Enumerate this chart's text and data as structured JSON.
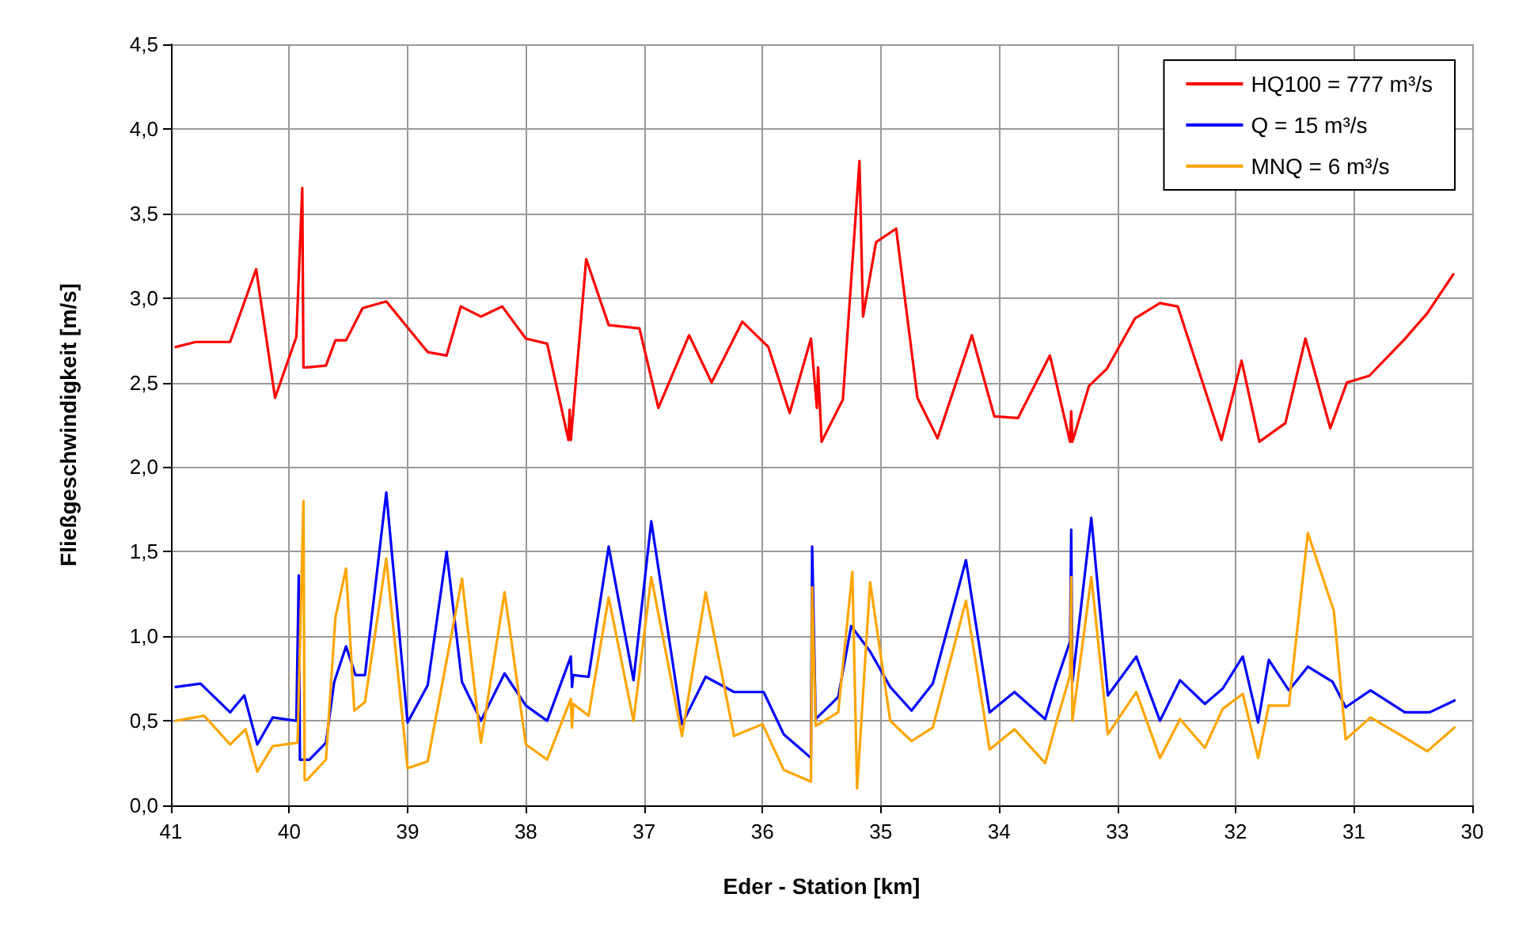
{
  "chart_data": {
    "type": "line",
    "xlabel": "Eder - Station [km]",
    "ylabel": "Fließgeschwindigkeit [m/s]",
    "xlim": [
      41,
      30
    ],
    "xticks": [
      41,
      40,
      39,
      38,
      37,
      36,
      35,
      34,
      33,
      32,
      31,
      30
    ],
    "ylim": [
      0,
      4.5
    ],
    "yticks": [
      {
        "value": 0,
        "label": "0,0"
      },
      {
        "value": 0.5,
        "label": "0,5"
      },
      {
        "value": 1,
        "label": "1,0"
      },
      {
        "value": 1.5,
        "label": "1,5"
      },
      {
        "value": 2,
        "label": "2,0"
      },
      {
        "value": 2.5,
        "label": "2,5"
      },
      {
        "value": 3,
        "label": "3,0"
      },
      {
        "value": 3.5,
        "label": "3,5"
      },
      {
        "value": 4,
        "label": "4,0"
      },
      {
        "value": 4.5,
        "label": "4,5"
      }
    ],
    "grid": true,
    "legend": "top right",
    "marker": "none",
    "line_style": "solid",
    "series": [
      {
        "name": "HQ100 = 777 m³/s",
        "color": "#ff0000",
        "x": [
          40.96,
          40.79,
          40.5,
          40.28,
          40.12,
          39.94,
          39.89,
          39.88,
          39.85,
          39.69,
          39.61,
          39.52,
          39.38,
          39.18,
          38.83,
          38.67,
          38.55,
          38.38,
          38.2,
          38.0,
          37.82,
          37.64,
          37.63,
          37.62,
          37.49,
          37.3,
          37.04,
          36.88,
          36.62,
          36.43,
          36.17,
          35.95,
          35.77,
          35.59,
          35.54,
          35.53,
          35.5,
          35.32,
          35.18,
          35.15,
          35.04,
          34.87,
          34.69,
          34.52,
          34.23,
          34.04,
          33.84,
          33.57,
          33.4,
          33.39,
          33.38,
          33.24,
          33.09,
          32.85,
          32.64,
          32.49,
          32.12,
          31.95,
          31.8,
          31.58,
          31.41,
          31.2,
          31.06,
          30.87,
          30.58,
          30.38,
          30.16
        ],
        "values": [
          2.71,
          2.74,
          2.74,
          3.17,
          2.41,
          2.77,
          3.65,
          2.59,
          2.59,
          2.6,
          2.75,
          2.75,
          2.94,
          2.98,
          2.68,
          2.66,
          2.95,
          2.89,
          2.95,
          2.76,
          2.73,
          2.16,
          2.34,
          2.16,
          3.23,
          2.84,
          2.82,
          2.35,
          2.78,
          2.5,
          2.86,
          2.71,
          2.32,
          2.76,
          2.35,
          2.59,
          2.15,
          2.4,
          3.81,
          2.89,
          3.33,
          3.41,
          2.41,
          2.17,
          2.78,
          2.3,
          2.29,
          2.66,
          2.15,
          2.33,
          2.15,
          2.48,
          2.58,
          2.88,
          2.97,
          2.95,
          2.16,
          2.63,
          2.15,
          2.26,
          2.76,
          2.23,
          2.5,
          2.54,
          2.75,
          2.91,
          3.14
        ]
      },
      {
        "name": "Q = 15 m³/s",
        "color": "#0000ff",
        "x": [
          40.96,
          40.75,
          40.5,
          40.38,
          40.27,
          40.14,
          39.94,
          39.92,
          39.91,
          39.83,
          39.69,
          39.62,
          39.52,
          39.44,
          39.36,
          39.18,
          39.0,
          38.83,
          38.67,
          38.54,
          38.38,
          38.18,
          38.0,
          37.82,
          37.62,
          37.61,
          37.6,
          37.47,
          37.3,
          37.09,
          36.94,
          36.68,
          36.48,
          36.24,
          35.99,
          35.82,
          35.59,
          35.58,
          35.55,
          35.36,
          35.25,
          35.09,
          34.92,
          34.74,
          34.56,
          34.28,
          34.08,
          33.87,
          33.61,
          33.52,
          33.4,
          33.39,
          33.38,
          33.22,
          33.08,
          32.84,
          32.64,
          32.47,
          32.26,
          32.11,
          31.94,
          31.81,
          31.72,
          31.55,
          31.39,
          31.18,
          31.07,
          30.86,
          30.57,
          30.36,
          30.15
        ],
        "values": [
          0.7,
          0.72,
          0.55,
          0.65,
          0.36,
          0.52,
          0.5,
          1.36,
          0.27,
          0.27,
          0.37,
          0.73,
          0.94,
          0.77,
          0.77,
          1.85,
          0.49,
          0.71,
          1.5,
          0.73,
          0.5,
          0.78,
          0.59,
          0.5,
          0.88,
          0.7,
          0.77,
          0.76,
          1.53,
          0.74,
          1.68,
          0.48,
          0.76,
          0.67,
          0.67,
          0.42,
          0.28,
          1.53,
          0.51,
          0.64,
          1.06,
          0.91,
          0.7,
          0.56,
          0.72,
          1.45,
          0.55,
          0.67,
          0.51,
          0.72,
          0.97,
          1.63,
          0.73,
          1.7,
          0.65,
          0.88,
          0.5,
          0.74,
          0.6,
          0.69,
          0.88,
          0.49,
          0.86,
          0.68,
          0.82,
          0.73,
          0.58,
          0.68,
          0.55,
          0.55,
          0.62
        ]
      },
      {
        "name": "MNQ = 6 m³/s",
        "color": "#ffa500",
        "x": [
          40.96,
          40.72,
          40.5,
          40.37,
          40.27,
          40.14,
          39.93,
          39.88,
          39.87,
          39.85,
          39.69,
          39.61,
          39.52,
          39.45,
          39.36,
          39.18,
          39.0,
          38.83,
          38.54,
          38.38,
          38.18,
          38.0,
          37.82,
          37.62,
          37.61,
          37.6,
          37.47,
          37.3,
          37.09,
          36.94,
          36.68,
          36.48,
          36.24,
          36.0,
          35.82,
          35.59,
          35.58,
          35.55,
          35.36,
          35.24,
          35.2,
          35.09,
          34.92,
          34.74,
          34.56,
          34.28,
          34.08,
          33.87,
          33.61,
          33.52,
          33.4,
          33.39,
          33.38,
          33.22,
          33.08,
          32.84,
          32.64,
          32.47,
          32.26,
          32.11,
          31.94,
          31.81,
          31.72,
          31.55,
          31.39,
          31.17,
          31.07,
          30.86,
          30.57,
          30.38,
          30.15
        ],
        "values": [
          0.5,
          0.53,
          0.36,
          0.45,
          0.2,
          0.35,
          0.37,
          1.8,
          0.15,
          0.15,
          0.27,
          1.11,
          1.4,
          0.56,
          0.61,
          1.46,
          0.22,
          0.26,
          1.34,
          0.37,
          1.26,
          0.36,
          0.27,
          0.63,
          0.46,
          0.6,
          0.53,
          1.23,
          0.5,
          1.35,
          0.41,
          1.26,
          0.41,
          0.48,
          0.21,
          0.14,
          1.29,
          0.47,
          0.55,
          1.38,
          0.1,
          1.32,
          0.5,
          0.38,
          0.46,
          1.21,
          0.33,
          0.45,
          0.25,
          0.48,
          0.77,
          1.35,
          0.5,
          1.35,
          0.42,
          0.67,
          0.28,
          0.51,
          0.34,
          0.57,
          0.66,
          0.28,
          0.59,
          0.59,
          1.61,
          1.15,
          0.39,
          0.52,
          0.4,
          0.32,
          0.46
        ]
      }
    ]
  }
}
